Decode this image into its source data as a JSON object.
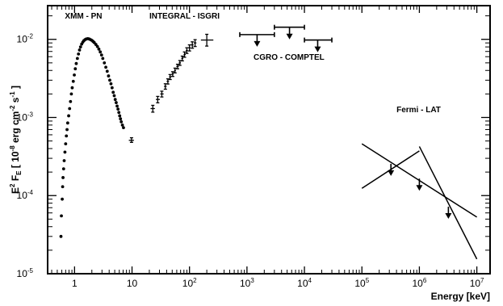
{
  "chart_data": {
    "type": "scatter",
    "title": "",
    "xlabel": "Energy [keV]",
    "ylabel_parts": [
      "E",
      "2",
      " F",
      "E",
      " [ 10",
      "-8",
      " erg cm",
      "-2",
      " s",
      "-1",
      " ]"
    ],
    "x_scale": "log",
    "y_scale": "log",
    "xlim": [
      0.34,
      17000000
    ],
    "ylim": [
      1e-05,
      0.027
    ],
    "x_ticks": [
      {
        "base": "1",
        "exp": ""
      },
      {
        "base": "10",
        "exp": ""
      },
      {
        "base": "10",
        "exp": "2"
      },
      {
        "base": "10",
        "exp": "3"
      },
      {
        "base": "10",
        "exp": "4"
      },
      {
        "base": "10",
        "exp": "5"
      },
      {
        "base": "10",
        "exp": "6"
      },
      {
        "base": "10",
        "exp": "7"
      }
    ],
    "x_tick_values": [
      1,
      10,
      100,
      1000,
      10000,
      100000,
      1000000,
      10000000
    ],
    "y_ticks": [
      {
        "base": "10",
        "exp": "-5"
      },
      {
        "base": "10",
        "exp": "-4"
      },
      {
        "base": "10",
        "exp": "-3"
      },
      {
        "base": "10",
        "exp": "-2"
      }
    ],
    "y_tick_values": [
      1e-05,
      0.0001,
      0.001,
      0.01
    ],
    "grid": false,
    "legend": "none",
    "annotations": [
      {
        "text": "XMM - PN",
        "x": 0.68,
        "y": 0.0185
      },
      {
        "text": "INTEGRAL - ISGRI",
        "x": 20,
        "y": 0.0185
      },
      {
        "text": "CGRO - COMPTEL",
        "x": 1300,
        "y": 0.0055
      },
      {
        "text": "Fermi - LAT",
        "x": 400000,
        "y": 0.00117
      }
    ],
    "series": [
      {
        "name": "XMM - PN",
        "style": "points",
        "points": [
          [
            0.58,
            3e-05
          ],
          [
            0.59,
            5.5e-05
          ],
          [
            0.61,
            9e-05
          ],
          [
            0.62,
            0.00013
          ],
          [
            0.63,
            0.00017
          ],
          [
            0.645,
            0.00022
          ],
          [
            0.66,
            0.00028
          ],
          [
            0.68,
            0.00036
          ],
          [
            0.7,
            0.00046
          ],
          [
            0.72,
            0.00058
          ],
          [
            0.74,
            0.0007
          ],
          [
            0.76,
            0.00085
          ],
          [
            0.79,
            0.00105
          ],
          [
            0.82,
            0.0013
          ],
          [
            0.85,
            0.0016
          ],
          [
            0.88,
            0.002
          ],
          [
            0.91,
            0.0024
          ],
          [
            0.95,
            0.0029
          ],
          [
            0.99,
            0.0035
          ],
          [
            1.03,
            0.0042
          ],
          [
            1.07,
            0.0049
          ],
          [
            1.12,
            0.0057
          ],
          [
            1.17,
            0.0065
          ],
          [
            1.22,
            0.0073
          ],
          [
            1.27,
            0.008
          ],
          [
            1.33,
            0.0087
          ],
          [
            1.39,
            0.0092
          ],
          [
            1.45,
            0.0096
          ],
          [
            1.52,
            0.0099
          ],
          [
            1.6,
            0.0101
          ],
          [
            1.7,
            0.0102
          ],
          [
            1.8,
            0.0101
          ],
          [
            1.9,
            0.0099
          ],
          [
            2.0,
            0.0097
          ],
          [
            2.1,
            0.0094
          ],
          [
            2.2,
            0.0091
          ],
          [
            2.35,
            0.0086
          ],
          [
            2.5,
            0.0081
          ],
          [
            2.65,
            0.0075
          ],
          [
            2.8,
            0.0069
          ],
          [
            2.95,
            0.0063
          ],
          [
            3.1,
            0.0057
          ],
          [
            3.3,
            0.005
          ],
          [
            3.5,
            0.0044
          ],
          [
            3.7,
            0.0039
          ],
          [
            3.9,
            0.0034
          ],
          [
            4.1,
            0.003
          ],
          [
            4.3,
            0.0027
          ],
          [
            4.5,
            0.0024
          ],
          [
            4.7,
            0.0021
          ],
          [
            4.9,
            0.0019
          ],
          [
            5.1,
            0.0017
          ],
          [
            5.3,
            0.00155
          ],
          [
            5.5,
            0.0014
          ],
          [
            5.7,
            0.00128
          ],
          [
            5.9,
            0.00116
          ],
          [
            6.1,
            0.00105
          ],
          [
            6.3,
            0.00096
          ],
          [
            6.5,
            0.00088
          ],
          [
            6.8,
            0.0008
          ],
          [
            7.1,
            0.00074
          ]
        ]
      },
      {
        "name": "XMM - PN",
        "style": "errorbars",
        "points": [
          [
            9.8,
            0.00051,
            8.8,
            10.8,
            0.00048,
            0.00055
          ]
        ]
      },
      {
        "name": "INTEGRAL - ISGRI",
        "style": "errorbars",
        "points": [
          [
            23,
            0.0013,
            21,
            25,
            0.00117,
            0.00143
          ],
          [
            28,
            0.0017,
            26,
            30.5,
            0.00154,
            0.00186
          ],
          [
            33,
            0.002,
            31,
            35.5,
            0.00183,
            0.00217
          ],
          [
            38,
            0.0025,
            36,
            40,
            0.0023,
            0.0027
          ],
          [
            42,
            0.0029,
            40,
            44,
            0.00268,
            0.00312
          ],
          [
            46,
            0.0033,
            44,
            48,
            0.00306,
            0.00354
          ],
          [
            51,
            0.0036,
            49,
            53,
            0.00335,
            0.00385
          ],
          [
            56,
            0.004,
            54,
            58,
            0.00372,
            0.00428
          ],
          [
            62,
            0.0045,
            59,
            65,
            0.0042,
            0.0048
          ],
          [
            68,
            0.005,
            65,
            71,
            0.00465,
            0.00535
          ],
          [
            75,
            0.0057,
            72,
            78,
            0.0053,
            0.0061
          ],
          [
            82,
            0.0064,
            79,
            86,
            0.0059,
            0.0069
          ],
          [
            90,
            0.0072,
            86,
            94,
            0.0066,
            0.0078
          ],
          [
            100,
            0.0078,
            95,
            105,
            0.0071,
            0.0085
          ],
          [
            112,
            0.0085,
            106,
            118,
            0.0077,
            0.0093
          ],
          [
            125,
            0.009,
            119,
            132,
            0.0081,
            0.0099
          ],
          [
            200,
            0.0098,
            158,
            260,
            0.0082,
            0.0116
          ]
        ]
      },
      {
        "name": "CGRO - COMPTEL",
        "style": "upper_limits",
        "points": [
          [
            1500,
            0.0115,
            750,
            3000
          ],
          [
            5500,
            0.0143,
            3000,
            10000
          ],
          [
            17000,
            0.0098,
            10000,
            30000
          ]
        ]
      },
      {
        "name": "Fermi - LAT",
        "style": "upper_limits",
        "points": [
          [
            320000,
            0.000255,
            0,
            0
          ],
          [
            1000000,
            0.000165,
            0,
            0
          ],
          [
            3200000,
            7.2e-05,
            0,
            0
          ]
        ]
      },
      {
        "name": "Fermi - LAT",
        "style": "lines",
        "segments": [
          [
            [
              100000,
              0.00046
            ],
            [
              10000000,
              5.3e-05
            ]
          ],
          [
            [
              100000,
              0.000124
            ],
            [
              1000000,
              0.000373
            ]
          ],
          [
            [
              1000000,
              0.000425
            ],
            [
              10000000,
              1.54e-05
            ]
          ]
        ]
      }
    ]
  }
}
